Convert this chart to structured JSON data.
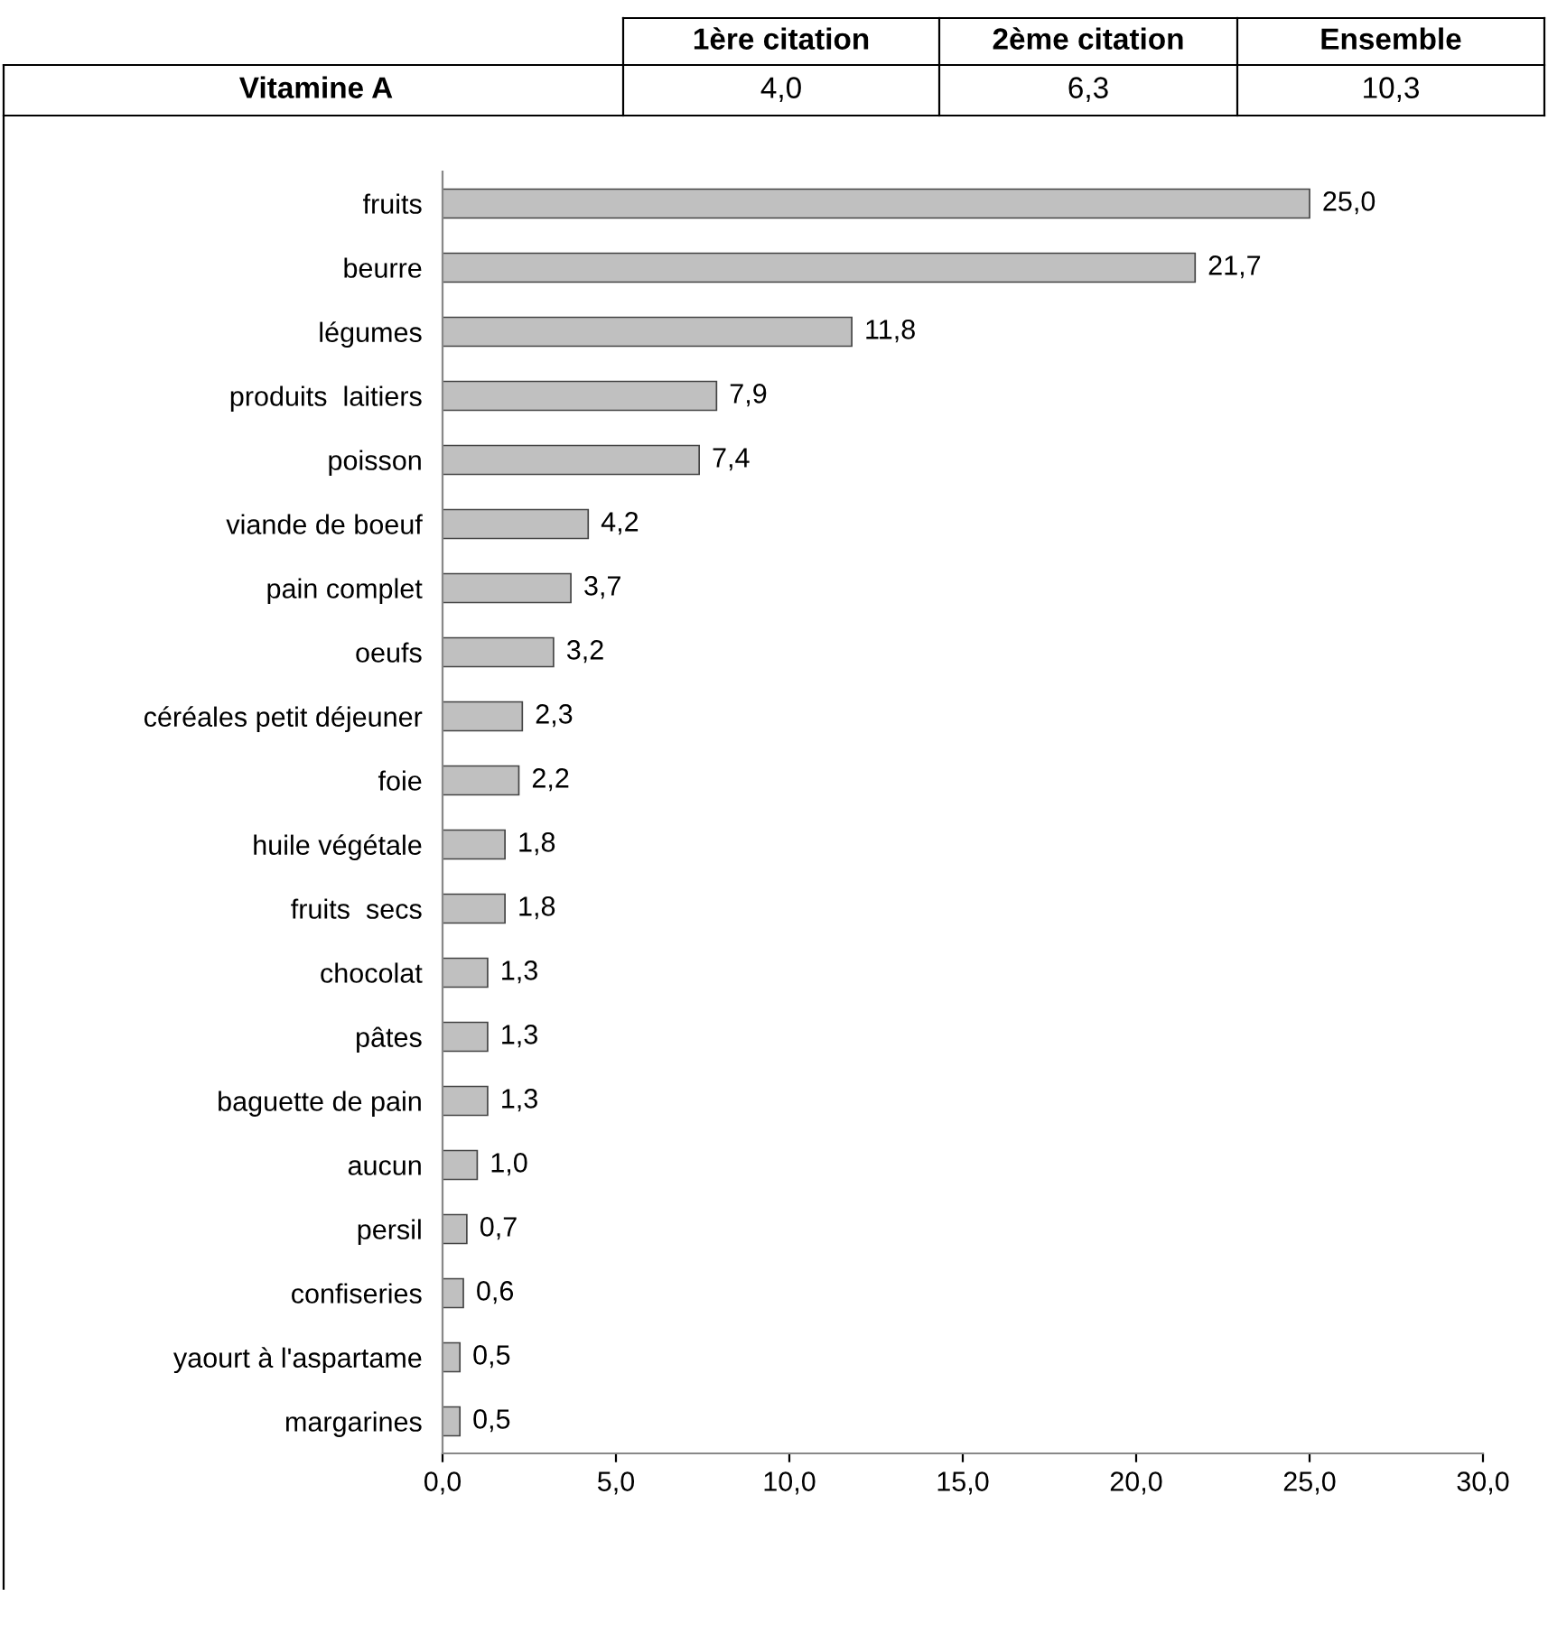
{
  "chart_data": {
    "type": "bar",
    "orientation": "horizontal",
    "categories": [
      "fruits",
      "beurre",
      "légumes",
      "produits  laitiers",
      "poisson",
      "viande de boeuf",
      "pain complet",
      "oeufs",
      "céréales petit déjeuner",
      "foie",
      "huile végétale",
      "fruits  secs",
      "chocolat",
      "pâtes",
      "baguette de pain",
      "aucun",
      "persil",
      "confiseries",
      "yaourt à l'aspartame",
      "margarines"
    ],
    "values": [
      25.0,
      21.7,
      11.8,
      7.9,
      7.4,
      4.2,
      3.7,
      3.2,
      2.3,
      2.2,
      1.8,
      1.8,
      1.3,
      1.3,
      1.3,
      1.0,
      0.7,
      0.6,
      0.5,
      0.5
    ],
    "value_labels": [
      "25,0",
      "21,7",
      "11,8",
      "7,9",
      "7,4",
      "4,2",
      "3,7",
      "3,2",
      "2,3",
      "2,2",
      "1,8",
      "1,8",
      "1,3",
      "1,3",
      "1,3",
      "1,0",
      "0,7",
      "0,6",
      "0,5",
      "0,5"
    ],
    "color": "#c0c0c0",
    "xlim": [
      0,
      30
    ],
    "xticks": [
      {
        "value": 0,
        "label": "0,0"
      },
      {
        "value": 5,
        "label": "5,0"
      },
      {
        "value": 10,
        "label": "10,0"
      },
      {
        "value": 15,
        "label": "15,0"
      },
      {
        "value": 20,
        "label": "20,0"
      },
      {
        "value": 25,
        "label": "25,0"
      },
      {
        "value": 30,
        "label": "30,0"
      }
    ],
    "annotations": [
      "1ère citation",
      "2ème citation",
      "Ensemble",
      "Vitamine A",
      "4,0",
      "6,3",
      "10,3"
    ],
    "grid": false,
    "legend": false
  }
}
